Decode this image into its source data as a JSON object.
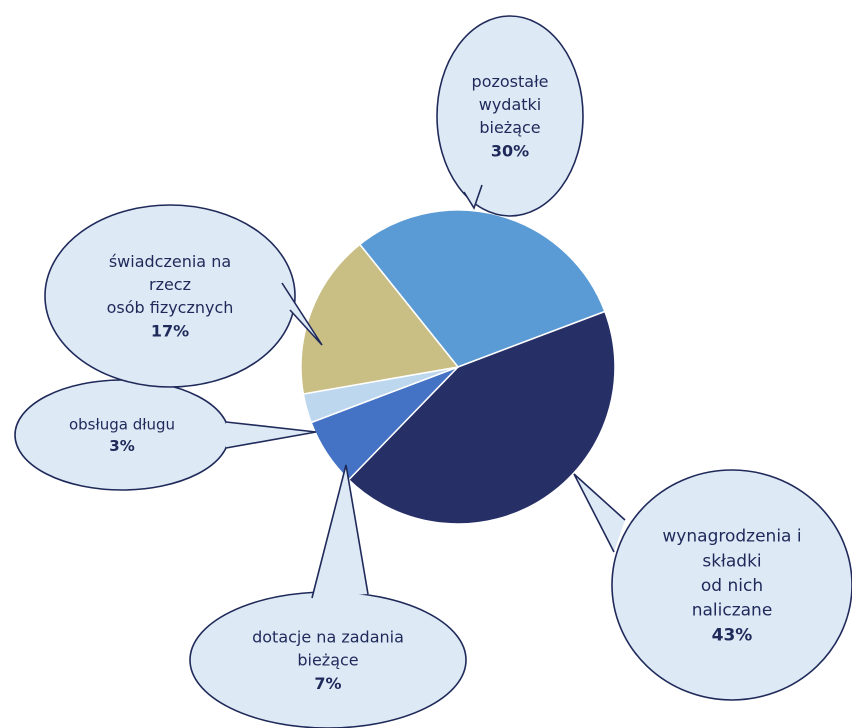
{
  "chart_data": {
    "type": "pie",
    "slices": [
      {
        "lines": [
          "pozostałe",
          "wydatki",
          "bieżące"
        ],
        "value": 30,
        "value_label": "30%",
        "color": "#5b9bd5"
      },
      {
        "lines": [
          "wynagrodzenia i",
          "składki",
          "od nich",
          "naliczane"
        ],
        "value": 43,
        "value_label": "43%",
        "color": "#262f66"
      },
      {
        "lines": [
          "dotacje na zadania",
          "bieżące"
        ],
        "value": 7,
        "value_label": "7%",
        "color": "#4472c4"
      },
      {
        "lines": [
          "obsługa długu"
        ],
        "value": 3,
        "value_label": "3%",
        "color": "#bdd7ee"
      },
      {
        "lines": [
          "świadczenia na",
          "rzecz",
          "osób fizycznych"
        ],
        "value": 17,
        "value_label": "17%",
        "color": "#c9bf85"
      }
    ],
    "callout_fill": "#dde9f5",
    "callout_stroke": "#1f2a5a",
    "slice_border": "#ffffff"
  }
}
